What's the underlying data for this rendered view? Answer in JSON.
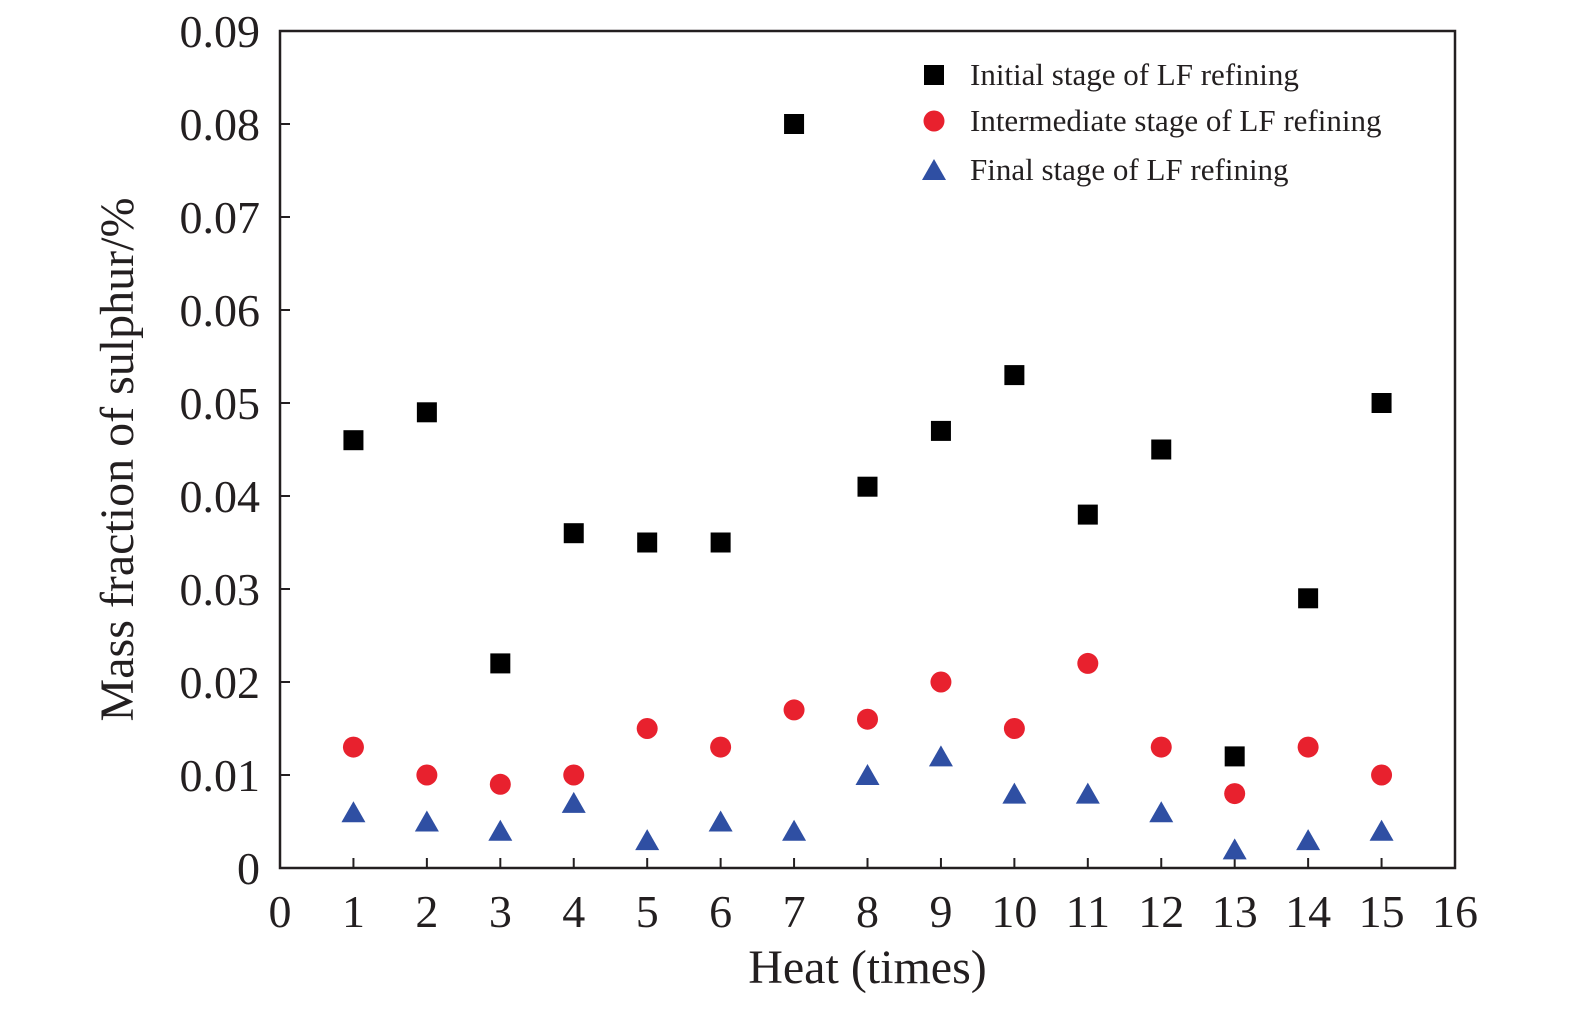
{
  "chart_data": {
    "type": "scatter",
    "xlabel": "Heat (times)",
    "ylabel": "Mass fraction of sulphur/%",
    "xlim": [
      0,
      16
    ],
    "ylim": [
      0,
      0.09
    ],
    "x_ticks": [
      "0",
      "1",
      "2",
      "3",
      "4",
      "5",
      "6",
      "7",
      "8",
      "9",
      "10",
      "11",
      "12",
      "13",
      "14",
      "15",
      "16"
    ],
    "y_ticks": [
      "0",
      "0.01",
      "0.02",
      "0.03",
      "0.04",
      "0.05",
      "0.06",
      "0.07",
      "0.08",
      "0.09"
    ],
    "grid": false,
    "legend_position": "top-right",
    "x": [
      1,
      2,
      3,
      4,
      5,
      6,
      7,
      8,
      9,
      10,
      11,
      12,
      13,
      14,
      15
    ],
    "series": [
      {
        "name": "Initial stage of LF refining",
        "marker": "square",
        "color": "#000000",
        "values": [
          0.046,
          0.049,
          0.022,
          0.036,
          0.035,
          0.035,
          0.08,
          0.041,
          0.047,
          0.053,
          0.038,
          0.045,
          0.012,
          0.029,
          0.05
        ]
      },
      {
        "name": "Intermediate stage of LF refining",
        "marker": "circle",
        "color": "#e8212e",
        "values": [
          0.013,
          0.01,
          0.009,
          0.01,
          0.015,
          0.013,
          0.017,
          0.016,
          0.02,
          0.015,
          0.022,
          0.013,
          0.008,
          0.013,
          0.01
        ]
      },
      {
        "name": "Final stage of LF refining",
        "marker": "triangle",
        "color": "#2f4fa3",
        "values": [
          0.006,
          0.005,
          0.004,
          0.007,
          0.003,
          0.005,
          0.004,
          0.01,
          0.012,
          0.008,
          0.008,
          0.006,
          0.002,
          0.003,
          0.004
        ]
      }
    ]
  }
}
